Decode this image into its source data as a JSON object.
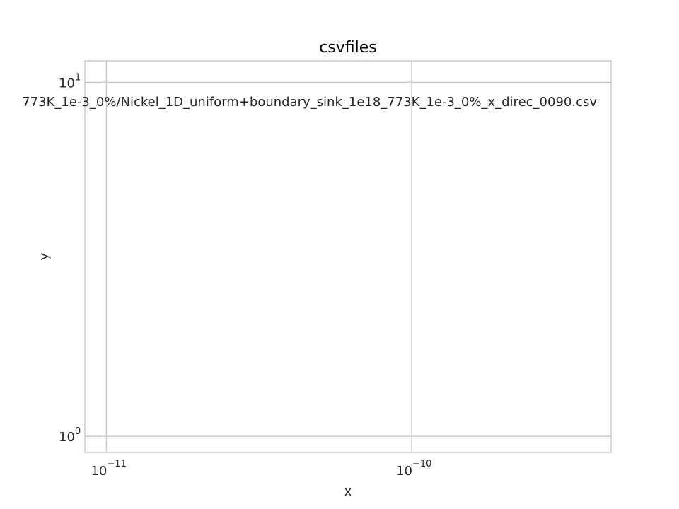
{
  "chart_data": {
    "type": "line",
    "title": "csvfiles",
    "xlabel": "x",
    "ylabel": "y",
    "xscale": "log",
    "yscale": "log",
    "xlim": [
      8.5e-12,
      4.5e-10
    ],
    "ylim": [
      0.9,
      11.5
    ],
    "grid": true,
    "xticks": [
      {
        "value": 1e-11,
        "base": "10",
        "exp": "−11"
      },
      {
        "value": 1e-10,
        "base": "10",
        "exp": "−10"
      }
    ],
    "yticks": [
      {
        "value": 1,
        "base": "10",
        "exp": "0"
      },
      {
        "value": 10,
        "base": "10",
        "exp": "1"
      }
    ],
    "annotation": "773K_1e-3_0%/Nickel_1D_uniform+boundary_sink_1e18_773K_1e-3_0%_x_direc_0090.csv",
    "series": []
  }
}
